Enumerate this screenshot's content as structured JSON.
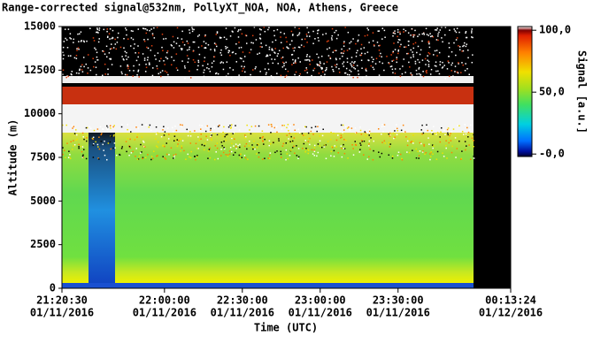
{
  "chart_data": {
    "type": "heatmap",
    "title": "Range-corrected signal@532nm, PollyXT_NOA, NOA, Athens, Greece",
    "x_label": "Time (UTC)",
    "y_label": "Altitude (m)",
    "colorbar_label": "Signal [a.u.]",
    "xlim": [
      "2016-01-11T21:20:30",
      "2016-01-12T00:13:24"
    ],
    "xticks": [
      {
        "value": "2016-01-11T21:20:30",
        "label": [
          "21:20:30",
          "01/11/2016"
        ]
      },
      {
        "value": "2016-01-11T22:00:00",
        "label": [
          "22:00:00",
          "01/11/2016"
        ]
      },
      {
        "value": "2016-01-11T22:30:00",
        "label": [
          "22:30:00",
          "01/11/2016"
        ]
      },
      {
        "value": "2016-01-11T23:00:00",
        "label": [
          "23:00:00",
          "01/11/2016"
        ]
      },
      {
        "value": "2016-01-11T23:30:00",
        "label": [
          "23:30:00",
          "01/11/2016"
        ]
      },
      {
        "value": "2016-01-12T00:13:24",
        "label": [
          "00:13:24",
          "01/12/2016"
        ]
      }
    ],
    "ylim": [
      0,
      15000
    ],
    "yticks": [
      0,
      2500,
      5000,
      7500,
      10000,
      12500,
      15000
    ],
    "clim": [
      -2,
      103
    ],
    "cticks": [
      {
        "value": 0,
        "label": "-0,0"
      },
      {
        "value": 50,
        "label": "50,0"
      },
      {
        "value": 100,
        "label": "100,0"
      }
    ]
  }
}
